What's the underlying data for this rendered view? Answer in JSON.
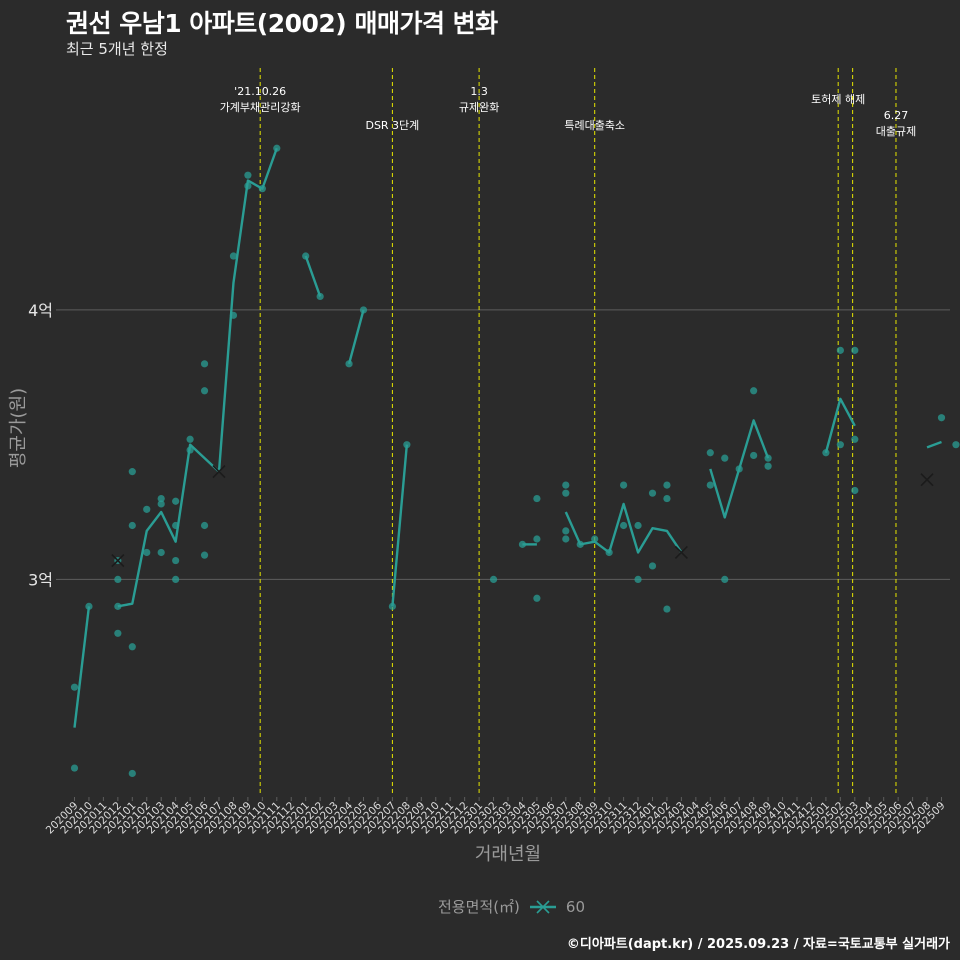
{
  "header": {
    "title": "권선 우남1 아파트(2002) 매매가격 변화",
    "subtitle": "최근 5개년 한정"
  },
  "footer": {
    "credit": "©디아파트(dapt.kr) / 2025.09.23 / 자료=국토교통부 실거래가"
  },
  "legend": {
    "title": "전용면적(㎡)",
    "item_label": "60"
  },
  "colors": {
    "background": "#2b2b2b",
    "series": "#2a9d94",
    "event_line": "#e6e600",
    "grid": "#5e5e5e",
    "axis_text": "#9a9a9a"
  },
  "chart_data": {
    "type": "line",
    "title": "권선 우남1 아파트(2002) 매매가격 변화",
    "subtitle": "최근 5개년 한정",
    "xlabel": "거래년월",
    "ylabel": "평균가(원)",
    "ylim_eok": [
      2.2,
      4.92
    ],
    "y_ticks": [
      {
        "value": 3,
        "label": "3억"
      },
      {
        "value": 4,
        "label": "4억"
      }
    ],
    "x_categories": [
      "202009",
      "202010",
      "202011",
      "202012",
      "202101",
      "202102",
      "202103",
      "202104",
      "202105",
      "202106",
      "202107",
      "202108",
      "202109",
      "202110",
      "202111",
      "202112",
      "202201",
      "202202",
      "202203",
      "202204",
      "202205",
      "202206",
      "202207",
      "202208",
      "202209",
      "202210",
      "202211",
      "202212",
      "202301",
      "202302",
      "202303",
      "202304",
      "202305",
      "202306",
      "202307",
      "202308",
      "202309",
      "202310",
      "202311",
      "202312",
      "202401",
      "202402",
      "202403",
      "202404",
      "202405",
      "202406",
      "202407",
      "202408",
      "202409",
      "202410",
      "202411",
      "202412",
      "202501",
      "202502",
      "202503",
      "202504",
      "202505",
      "202506",
      "202507",
      "202508",
      "202509"
    ],
    "series": [
      {
        "name": "60",
        "line_segments": [
          [
            [
              0,
              2.45
            ],
            [
              1,
              2.9
            ],
            [
              2,
              null
            ]
          ],
          [
            [
              3,
              2.9
            ],
            [
              4,
              2.91
            ],
            [
              5,
              3.18
            ],
            [
              6,
              3.25
            ],
            [
              7,
              3.14
            ],
            [
              8,
              3.5
            ],
            [
              9,
              3.45
            ],
            [
              10,
              3.4
            ],
            [
              11,
              4.1
            ],
            [
              12,
              4.48
            ],
            [
              13,
              4.45
            ],
            [
              14,
              4.6
            ]
          ],
          [
            [
              16,
              4.2
            ],
            [
              17,
              4.05
            ]
          ],
          [
            [
              19,
              3.8
            ],
            [
              20,
              4.0
            ]
          ],
          [
            [
              22,
              2.9
            ],
            [
              23,
              3.5
            ]
          ],
          [
            [
              31,
              3.13
            ],
            [
              32,
              3.13
            ]
          ],
          [
            [
              34,
              3.25
            ],
            [
              35,
              3.13
            ],
            [
              36,
              3.14
            ],
            [
              37,
              3.1
            ],
            [
              38,
              3.28
            ],
            [
              39,
              3.1
            ],
            [
              40,
              3.19
            ],
            [
              41,
              3.18
            ],
            [
              42,
              3.1
            ]
          ],
          [
            [
              44,
              3.41
            ],
            [
              45,
              3.23
            ],
            [
              46,
              3.41
            ],
            [
              47,
              3.59
            ],
            [
              48,
              3.45
            ]
          ],
          [
            [
              52,
              3.47
            ],
            [
              53,
              3.67
            ],
            [
              54,
              3.57
            ]
          ],
          [
            [
              59,
              3.49
            ],
            [
              60,
              3.51
            ]
          ]
        ],
        "points": [
          [
            0,
            2.6
          ],
          [
            0,
            2.3
          ],
          [
            1,
            2.9
          ],
          [
            3,
            3.07
          ],
          [
            3,
            3.0
          ],
          [
            3,
            2.9
          ],
          [
            3,
            2.8
          ],
          [
            4,
            3.4
          ],
          [
            4,
            3.2
          ],
          [
            4,
            2.75
          ],
          [
            4,
            2.28
          ],
          [
            5,
            3.26
          ],
          [
            5,
            3.1
          ],
          [
            6,
            3.3
          ],
          [
            6,
            3.28
          ],
          [
            6,
            3.1
          ],
          [
            7,
            3.29
          ],
          [
            7,
            3.2
          ],
          [
            7,
            3.07
          ],
          [
            7,
            3.0
          ],
          [
            8,
            3.52
          ],
          [
            8,
            3.48
          ],
          [
            9,
            3.8
          ],
          [
            9,
            3.7
          ],
          [
            9,
            3.2
          ],
          [
            9,
            3.09
          ],
          [
            11,
            4.2
          ],
          [
            11,
            3.98
          ],
          [
            12,
            4.5
          ],
          [
            12,
            4.46
          ],
          [
            13,
            4.45
          ],
          [
            14,
            4.6
          ],
          [
            16,
            4.2
          ],
          [
            17,
            4.05
          ],
          [
            19,
            3.8
          ],
          [
            20,
            4.0
          ],
          [
            22,
            2.9
          ],
          [
            23,
            3.5
          ],
          [
            29,
            3.0
          ],
          [
            31,
            3.13
          ],
          [
            32,
            3.3
          ],
          [
            32,
            3.15
          ],
          [
            32,
            2.93
          ],
          [
            34,
            3.35
          ],
          [
            34,
            3.32
          ],
          [
            34,
            3.18
          ],
          [
            34,
            3.15
          ],
          [
            35,
            3.13
          ],
          [
            36,
            3.15
          ],
          [
            37,
            3.1
          ],
          [
            38,
            3.35
          ],
          [
            38,
            3.2
          ],
          [
            39,
            3.2
          ],
          [
            39,
            3.0
          ],
          [
            40,
            3.32
          ],
          [
            40,
            3.05
          ],
          [
            41,
            3.35
          ],
          [
            41,
            3.3
          ],
          [
            41,
            2.89
          ],
          [
            44,
            3.47
          ],
          [
            44,
            3.35
          ],
          [
            45,
            3.45
          ],
          [
            45,
            3.0
          ],
          [
            46,
            3.41
          ],
          [
            47,
            3.7
          ],
          [
            47,
            3.46
          ],
          [
            48,
            3.45
          ],
          [
            48,
            3.42
          ],
          [
            52,
            3.47
          ],
          [
            53,
            3.85
          ],
          [
            53,
            3.5
          ],
          [
            54,
            3.85
          ],
          [
            54,
            3.52
          ],
          [
            54,
            3.33
          ],
          [
            60,
            3.6
          ],
          [
            61,
            3.5
          ]
        ],
        "cross_markers": [
          [
            3,
            3.07
          ],
          [
            10,
            3.4
          ],
          [
            42,
            3.1
          ],
          [
            59,
            3.37
          ]
        ]
      }
    ],
    "events": [
      {
        "x": 12.85,
        "lines": [
          "'21.10.26",
          "가계부채관리강화"
        ],
        "label_row": 0
      },
      {
        "x": 22.0,
        "lines": [
          "DSR 3단계"
        ],
        "label_row": 2
      },
      {
        "x": 28.0,
        "lines": [
          "1.3",
          "규제완화"
        ],
        "label_row": 0
      },
      {
        "x": 36.0,
        "lines": [
          "특례대출축소"
        ],
        "label_row": 2
      },
      {
        "x": 52.85,
        "lines": [
          "토허제 해제"
        ],
        "label_row": 1
      },
      {
        "x": 53.85,
        "lines": [],
        "label_row": 1
      },
      {
        "x": 56.85,
        "lines": [
          "6.27",
          "대출규제"
        ],
        "label_row": 3
      }
    ]
  }
}
